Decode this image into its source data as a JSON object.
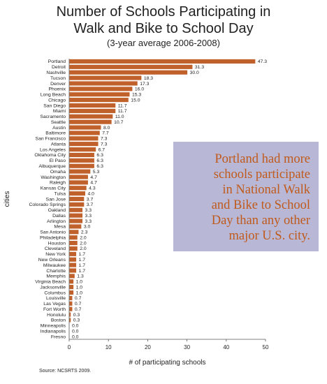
{
  "chart_data": {
    "type": "bar",
    "orientation": "horizontal",
    "title": [
      "Number of Schools Participating in",
      "Walk and Bike to School Day"
    ],
    "subtitle": "(3-year average 2006-2008)",
    "xlabel": "# of participating schools",
    "ylabel": "cities",
    "xlim": [
      0,
      50
    ],
    "xticks": [
      0,
      10,
      20,
      30,
      40,
      50
    ],
    "bar_color": "#c0612b",
    "categories": [
      "Portland",
      "Detroit",
      "Nashville",
      "Tucson",
      "Denver",
      "Phoenix",
      "Long Beach",
      "Chicago",
      "San Diego",
      "Miami",
      "Sacramento",
      "Seattle",
      "Austin",
      "Baltimore",
      "San Francisco",
      "Atlanta",
      "Los Angeles",
      "Oklahoma City",
      "El Paso",
      "Albuquerque",
      "Omaha",
      "Washington",
      "Raleigh",
      "Kansas City",
      "Tulsa",
      "San Jose",
      "Colorado Springs",
      "Oakland",
      "Dallas",
      "Arlington",
      "Mesa",
      "San Antonio",
      "Philadelphia",
      "Houston",
      "Cleveland",
      "New York",
      "New Orleans",
      "Milwaukee",
      "Charlotte",
      "Memphis",
      "Virginia Beach",
      "Jacksonville",
      "Columbus",
      "Louisville",
      "Las Vegas",
      "Fort Worth",
      "Honolulu",
      "Boston",
      "Minneapolis",
      "Indianapolis",
      "Fresno"
    ],
    "values": [
      47.3,
      31.3,
      30.0,
      18.3,
      17.3,
      16.0,
      15.3,
      15.0,
      11.7,
      11.7,
      11.0,
      10.7,
      8.0,
      7.7,
      7.3,
      7.3,
      6.7,
      6.3,
      6.3,
      6.3,
      5.3,
      4.7,
      4.7,
      4.3,
      4.0,
      3.7,
      3.7,
      3.3,
      3.3,
      3.3,
      3.0,
      2.3,
      2.0,
      2.0,
      2.0,
      1.7,
      1.7,
      1.7,
      1.7,
      1.3,
      1.0,
      1.0,
      1.0,
      0.7,
      0.7,
      0.7,
      0.3,
      0.3,
      0.0,
      0.0,
      0.0
    ],
    "value_labels": [
      "47.3",
      "31.3",
      "30.0",
      "18.3",
      "17.3",
      "16.0",
      "15.3",
      "15.0",
      "11.7",
      "11.7",
      "11.0",
      "10.7",
      "8.0",
      "7.7",
      "7.3",
      "7.3",
      "6.7",
      "6.3",
      "6.3",
      "6.3",
      "5.3",
      "4.7",
      "4.7",
      "4.3",
      "4.0",
      "3.7",
      "3.7",
      "3.3",
      "3.3",
      "3.3",
      "3.0",
      "2.3",
      "2.0",
      "2.0",
      "2.0",
      "1.7",
      "1.7",
      "1.7",
      "1.7",
      "1.3",
      "1.0",
      "1.0",
      "1.0",
      "0.7",
      "0.7",
      "0.7",
      "0.3",
      "0.3",
      "0.0",
      "0.0",
      "0.0"
    ],
    "grid": false,
    "legend": "none"
  },
  "callout": {
    "lines": [
      "Portland had more",
      "schools participate",
      "in National Walk",
      "and Bike to School",
      "Day than any other",
      "major U.S. city."
    ],
    "background": "#b8b8d6",
    "text_color": "#c05a1c"
  },
  "source": "Source: NCSRTS 2009."
}
